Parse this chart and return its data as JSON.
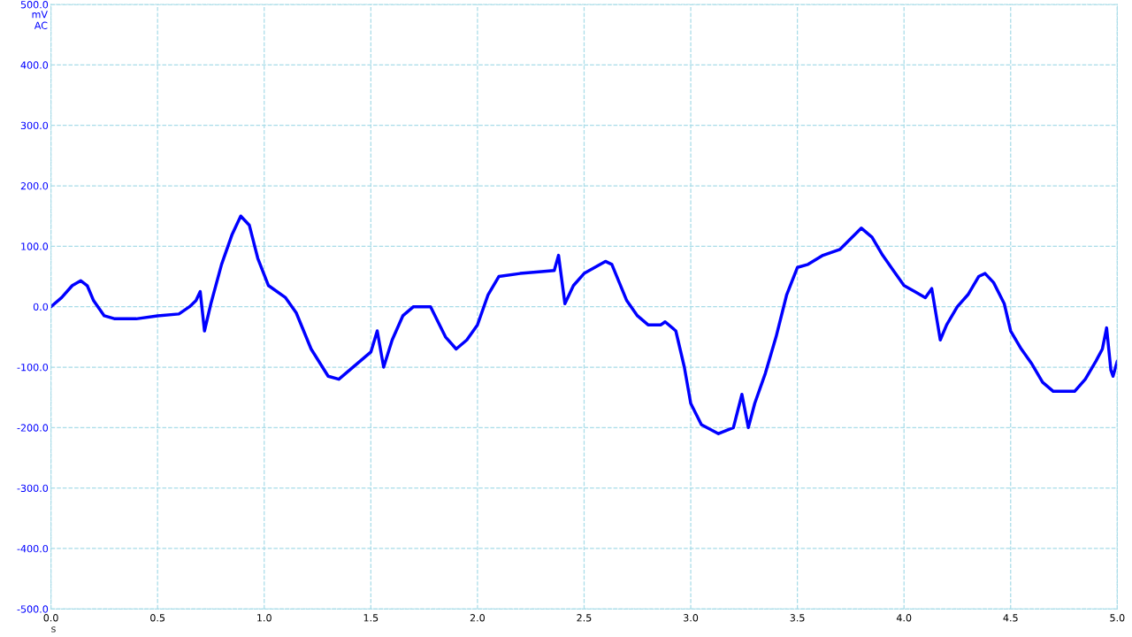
{
  "chart_data": {
    "type": "line",
    "xlabel": "s",
    "ylabel": "mV\nAC",
    "x": [
      0.0,
      0.05,
      0.1,
      0.14,
      0.17,
      0.2,
      0.25,
      0.3,
      0.4,
      0.5,
      0.6,
      0.65,
      0.68,
      0.7,
      0.72,
      0.75,
      0.8,
      0.85,
      0.89,
      0.93,
      0.97,
      1.02,
      1.1,
      1.15,
      1.22,
      1.3,
      1.35,
      1.45,
      1.5,
      1.53,
      1.56,
      1.6,
      1.65,
      1.7,
      1.78,
      1.85,
      1.9,
      1.95,
      2.0,
      2.05,
      2.1,
      2.2,
      2.3,
      2.36,
      2.38,
      2.41,
      2.45,
      2.5,
      2.55,
      2.6,
      2.63,
      2.7,
      2.75,
      2.8,
      2.86,
      2.88,
      2.93,
      2.97,
      3.0,
      3.05,
      3.13,
      3.2,
      3.24,
      3.27,
      3.3,
      3.35,
      3.4,
      3.45,
      3.5,
      3.55,
      3.62,
      3.7,
      3.8,
      3.85,
      3.9,
      3.95,
      4.0,
      4.05,
      4.1,
      4.13,
      4.17,
      4.2,
      4.25,
      4.3,
      4.35,
      4.38,
      4.42,
      4.47,
      4.5,
      4.55,
      4.6,
      4.65,
      4.7,
      4.8,
      4.85,
      4.9,
      4.93,
      4.95,
      4.97,
      4.98,
      5.0
    ],
    "series": [
      {
        "color": "#0000ff",
        "values": [
          0,
          15,
          35,
          43,
          35,
          10,
          -15,
          -20,
          -20,
          -15,
          -12,
          0,
          10,
          25,
          -40,
          5,
          70,
          120,
          150,
          135,
          80,
          35,
          15,
          -10,
          -70,
          -115,
          -120,
          -90,
          -75,
          -40,
          -100,
          -55,
          -15,
          0,
          0,
          -50,
          -70,
          -55,
          -30,
          20,
          50,
          55,
          58,
          60,
          85,
          5,
          35,
          55,
          65,
          75,
          70,
          10,
          -15,
          -30,
          -30,
          -25,
          -40,
          -100,
          -160,
          -195,
          -210,
          -200,
          -145,
          -200,
          -160,
          -110,
          -50,
          20,
          65,
          70,
          85,
          95,
          130,
          115,
          85,
          60,
          35,
          25,
          15,
          30,
          -55,
          -30,
          0,
          20,
          50,
          55,
          40,
          5,
          -40,
          -70,
          -95,
          -125,
          -140,
          -140,
          -120,
          -90,
          -70,
          -35,
          -105,
          -115,
          -90
        ]
      }
    ],
    "xlim": [
      0,
      5
    ],
    "xticks": [
      {
        "value": 0,
        "label": "0.0"
      },
      0.5,
      {
        "value": 1,
        "label": "1.0"
      },
      1.5,
      {
        "value": 2,
        "label": "2.0"
      },
      2.5,
      {
        "value": 3,
        "label": "3.0"
      },
      3.5,
      {
        "value": 4,
        "label": "4.0"
      },
      4.5,
      {
        "value": 5,
        "label": "5.0"
      }
    ],
    "ylim": [
      -500,
      500
    ],
    "yticks": [
      {
        "value": -500,
        "label": "-500.0"
      },
      {
        "value": -400,
        "label": "-400.0"
      },
      {
        "value": -300,
        "label": "-300.0"
      },
      {
        "value": -200,
        "label": "-200.0"
      },
      {
        "value": -100,
        "label": "-100.0"
      },
      {
        "value": 0,
        "label": "0.0"
      },
      {
        "value": 100,
        "label": "100.0"
      },
      {
        "value": 200,
        "label": "200.0"
      },
      {
        "value": 300,
        "label": "300.0"
      },
      {
        "value": 400,
        "label": "400.0"
      },
      {
        "value": 500,
        "label": "500.0"
      }
    ],
    "grid": true,
    "marker": "none",
    "line_style": "solid"
  }
}
